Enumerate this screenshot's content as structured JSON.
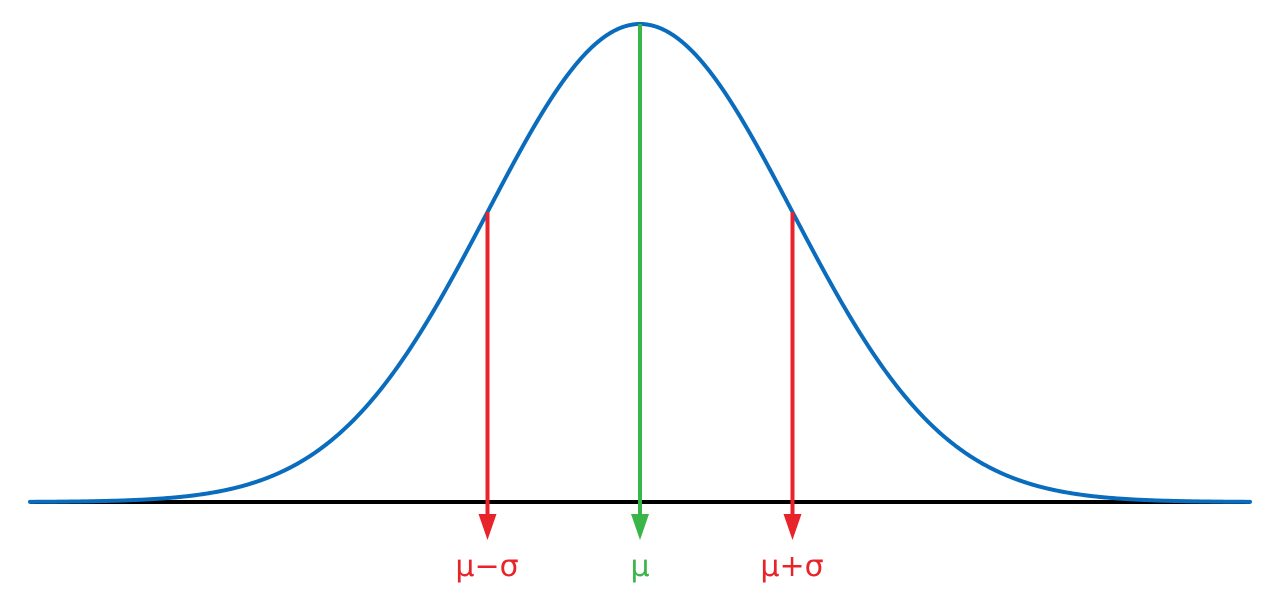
{
  "diagram": {
    "labels": {
      "minus_sigma": "μ−σ",
      "mean": "μ",
      "plus_sigma": "μ+σ"
    },
    "colors": {
      "curve": "#0a6cbd",
      "axis": "#000000",
      "mean": "#3bb54a",
      "sigma": "#e8232a"
    }
  }
}
